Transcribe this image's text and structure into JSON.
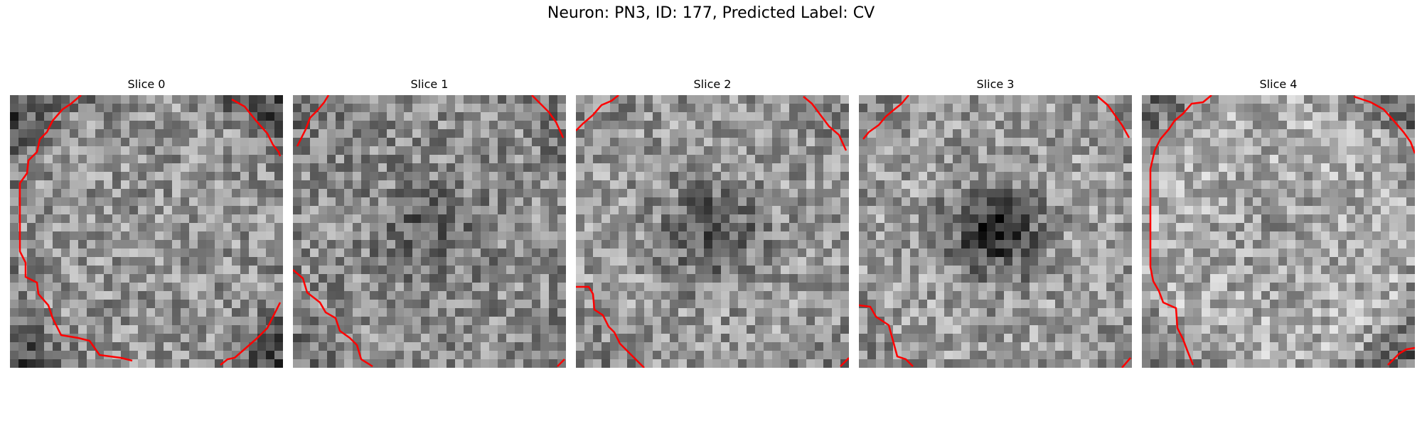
{
  "figure": {
    "title": "Neuron: PN3, ID: 177, Predicted Label: CV"
  },
  "panels": [
    {
      "title": "Slice 0",
      "dark_center": 0.0,
      "base": 0.58,
      "ring": 0.3
    },
    {
      "title": "Slice 1",
      "dark_center": 0.18,
      "base": 0.55,
      "ring": 0.1
    },
    {
      "title": "Slice 2",
      "dark_center": 0.28,
      "base": 0.6,
      "ring": 0.08
    },
    {
      "title": "Slice 3",
      "dark_center": 0.42,
      "base": 0.62,
      "ring": 0.1
    },
    {
      "title": "Slice 4",
      "dark_center": 0.1,
      "base": 0.68,
      "ring": 0.28
    }
  ],
  "colors": {
    "contour": "#ff0000"
  }
}
